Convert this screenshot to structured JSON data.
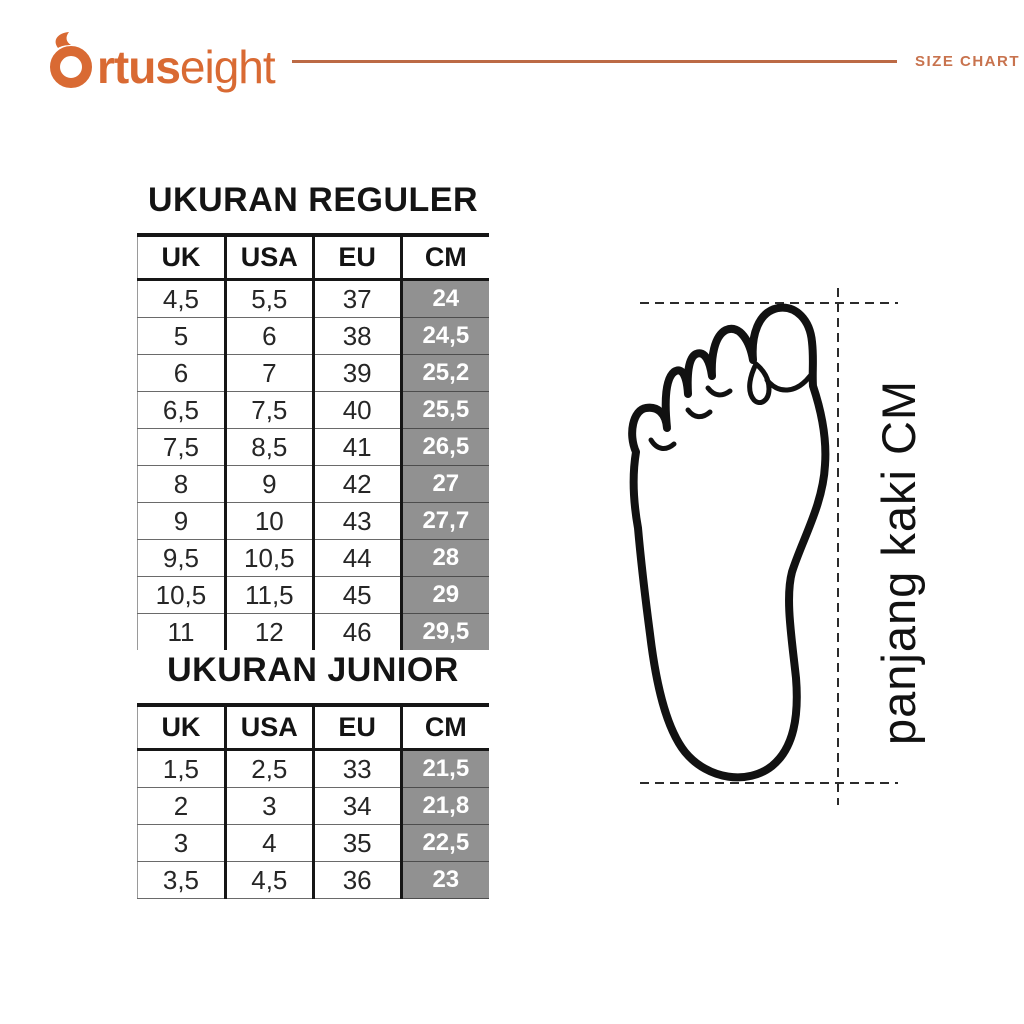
{
  "header": {
    "brand_full_name": "Ortuseight",
    "brand_text_bold": "rtus",
    "brand_text_light": "eight",
    "tagline": "SIZE CHART"
  },
  "colors": {
    "brand_orange": "#d96a33",
    "rule_orange": "#bc6a45",
    "tagline_orange": "#c8734e",
    "cm_cell_gray": "#919191",
    "cm_cell_text": "#ffffff",
    "table_border": "#161616"
  },
  "tables": [
    {
      "title": "UKURAN REGULER",
      "columns": [
        "UK",
        "USA",
        "EU",
        "CM"
      ],
      "rows": [
        [
          "4,5",
          "5,5",
          "37",
          "24"
        ],
        [
          "5",
          "6",
          "38",
          "24,5"
        ],
        [
          "6",
          "7",
          "39",
          "25,2"
        ],
        [
          "6,5",
          "7,5",
          "40",
          "25,5"
        ],
        [
          "7,5",
          "8,5",
          "41",
          "26,5"
        ],
        [
          "8",
          "9",
          "42",
          "27"
        ],
        [
          "9",
          "10",
          "43",
          "27,7"
        ],
        [
          "9,5",
          "10,5",
          "44",
          "28"
        ],
        [
          "10,5",
          "11,5",
          "45",
          "29"
        ],
        [
          "11",
          "12",
          "46",
          "29,5"
        ]
      ]
    },
    {
      "title": "UKURAN JUNIOR",
      "columns": [
        "UK",
        "USA",
        "EU",
        "CM"
      ],
      "rows": [
        [
          "1,5",
          "2,5",
          "33",
          "21,5"
        ],
        [
          "2",
          "3",
          "34",
          "21,8"
        ],
        [
          "3",
          "4",
          "35",
          "22,5"
        ],
        [
          "3,5",
          "4,5",
          "36",
          "23"
        ]
      ]
    }
  ],
  "figure": {
    "label": "panjang kaki CM"
  }
}
